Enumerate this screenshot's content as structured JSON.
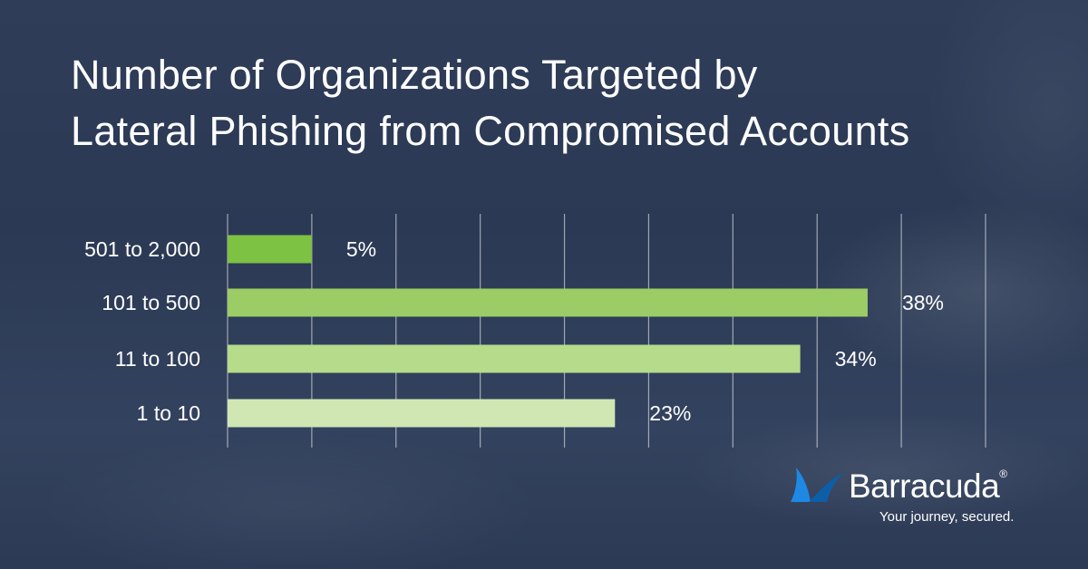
{
  "title": {
    "line1": "Number of Organizations Targeted by",
    "line2": "Lateral Phishing from Compromised Accounts"
  },
  "chart_data": {
    "type": "bar",
    "orientation": "horizontal",
    "title": "Number of Organizations Targeted by Lateral Phishing from Compromised Accounts",
    "categories": [
      "501 to 2,000",
      "101 to 500",
      "11 to 100",
      "1 to 10"
    ],
    "values": [
      5,
      38,
      34,
      23
    ],
    "value_labels": [
      "5%",
      "38%",
      "34%",
      "23%"
    ],
    "bar_colors": [
      "#7dc242",
      "#9ccc65",
      "#b5db8b",
      "#d0e7b4"
    ],
    "xlim": [
      0,
      45
    ],
    "grid": true,
    "grid_step": 5
  },
  "logo": {
    "name": "Barracuda",
    "trademark": "®",
    "tagline": "Your journey, secured.",
    "colors": {
      "mark_primary": "#1e88e5",
      "mark_secondary": "#0d5ea8"
    }
  }
}
